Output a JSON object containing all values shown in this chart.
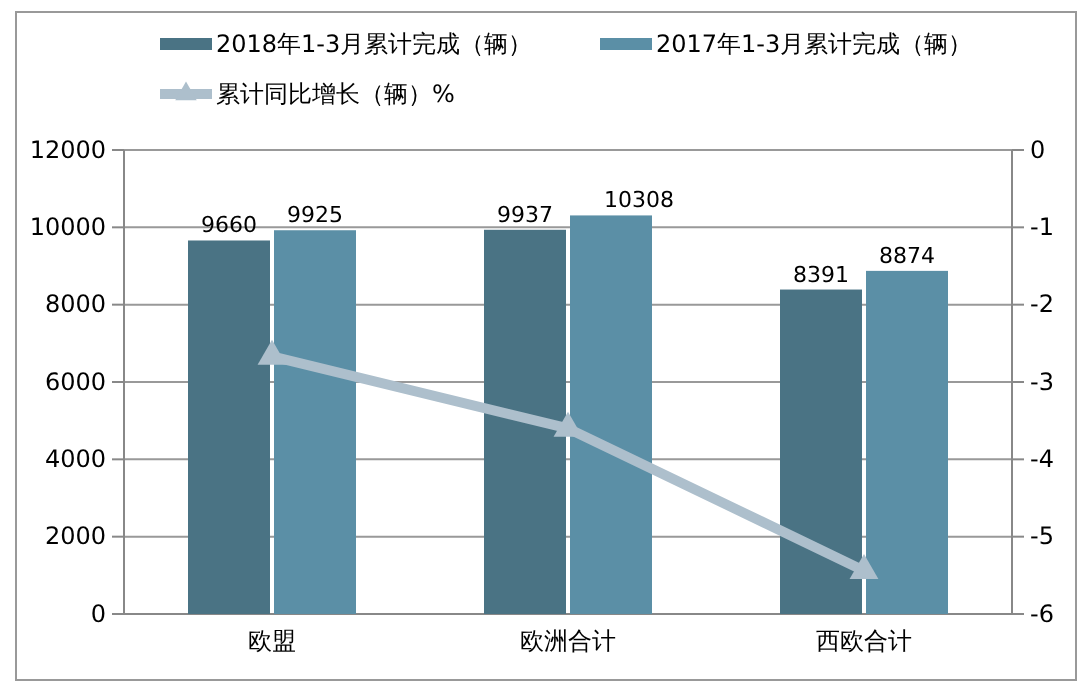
{
  "chart_data": {
    "type": "bar",
    "categories": [
      "欧盟",
      "欧洲合计",
      "西欧合计"
    ],
    "series": [
      {
        "name": "2018年1-3月累计完成（辆）",
        "color": "#4a7384",
        "values": [
          9660,
          9937,
          8391
        ],
        "value_labels": [
          "9660",
          "9937",
          "8391"
        ]
      },
      {
        "name": "2017年1-3月累计完成（辆）",
        "color": "#5b8fa6",
        "values": [
          9925,
          10308,
          8874
        ],
        "value_labels": [
          "9925",
          "10308",
          "8874"
        ]
      },
      {
        "name": "累计同比增长（辆）%",
        "color": "#adbfcc",
        "type": "line",
        "axis": "y2",
        "values": [
          -2.67,
          -3.6,
          -5.44
        ]
      }
    ],
    "marker": "triangle",
    "ylim": [
      0,
      12000
    ],
    "yticks": [
      0,
      2000,
      4000,
      6000,
      8000,
      10000,
      12000
    ],
    "y2lim": [
      -6,
      0
    ],
    "y2ticks": [
      -6,
      -5,
      -4,
      -3,
      -2,
      -1,
      0
    ],
    "grid": "y",
    "legend": "top"
  }
}
